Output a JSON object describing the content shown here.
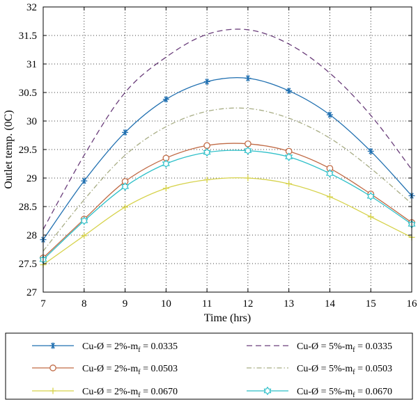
{
  "chart_data": {
    "type": "line",
    "xlabel": "Time (hrs)",
    "ylabel": "Outlet temp. (0C)",
    "xlim": [
      7,
      16
    ],
    "ylim": [
      27,
      32
    ],
    "xticks": [
      "7",
      "8",
      "9",
      "10",
      "11",
      "12",
      "13",
      "14",
      "15",
      "16"
    ],
    "yticks": [
      "27",
      "27.5",
      "28",
      "28.5",
      "29",
      "29.5",
      "30",
      "30.5",
      "31",
      "31.5",
      "32"
    ],
    "grid": "dotted",
    "legend_placement": "bottom",
    "series": [
      {
        "legend_main": "Cu-Ø = 2%-m",
        "legend_sub": "f",
        "legend_tail": " = 0.0335",
        "color": "#1f6fb0",
        "line": "solid",
        "marker": "asterisk",
        "x": [
          7,
          8,
          9,
          10,
          11,
          12,
          13,
          14,
          15,
          16
        ],
        "values": [
          27.92,
          28.95,
          29.8,
          30.38,
          30.69,
          30.75,
          30.53,
          30.11,
          29.47,
          28.69
        ]
      },
      {
        "legend_main": "Cu-Ø = 5%-m",
        "legend_sub": "f",
        "legend_tail": " = 0.0335",
        "color": "#6a3d7a",
        "line": "dashed",
        "marker": "none",
        "x": [
          7,
          8,
          9,
          10,
          11,
          12,
          13,
          14,
          15,
          16
        ],
        "values": [
          28.1,
          29.4,
          30.5,
          31.12,
          31.52,
          31.6,
          31.35,
          30.84,
          30.1,
          29.15
        ]
      },
      {
        "legend_main": "Cu-Ø = 2%-m",
        "legend_sub": "f",
        "legend_tail": " = 0.0503",
        "color": "#c06a45",
        "line": "solid",
        "marker": "circle",
        "x": [
          7,
          8,
          9,
          10,
          11,
          12,
          13,
          14,
          15,
          16
        ],
        "values": [
          27.6,
          28.28,
          28.94,
          29.35,
          29.57,
          29.6,
          29.47,
          29.17,
          28.72,
          28.22
        ]
      },
      {
        "legend_main": "Cu-Ø = 5%-m",
        "legend_sub": "f",
        "legend_tail": " = 0.0503",
        "color": "#a8ad85",
        "line": "dashdot",
        "marker": "none",
        "x": [
          7,
          8,
          9,
          10,
          11,
          12,
          13,
          14,
          15,
          16
        ],
        "values": [
          27.72,
          28.62,
          29.4,
          29.9,
          30.17,
          30.22,
          30.05,
          29.7,
          29.17,
          28.55
        ]
      },
      {
        "legend_main": "Cu-Ø = 2%-m",
        "legend_sub": "f",
        "legend_tail": " = 0.0670",
        "color": "#d6d24a",
        "line": "solid",
        "marker": "plus",
        "x": [
          7,
          8,
          9,
          10,
          11,
          12,
          13,
          14,
          15,
          16
        ],
        "values": [
          27.48,
          27.99,
          28.49,
          28.82,
          28.97,
          29.0,
          28.9,
          28.67,
          28.32,
          27.96
        ]
      },
      {
        "legend_main": "Cu-Ø = 5%-m",
        "legend_sub": "f",
        "legend_tail": " = 0.0670",
        "color": "#2bbfc8",
        "line": "solid",
        "marker": "hexagram",
        "x": [
          7,
          8,
          9,
          10,
          11,
          12,
          13,
          14,
          15,
          16
        ],
        "values": [
          27.57,
          28.25,
          28.85,
          29.25,
          29.45,
          29.48,
          29.37,
          29.08,
          28.68,
          28.19
        ]
      }
    ]
  }
}
